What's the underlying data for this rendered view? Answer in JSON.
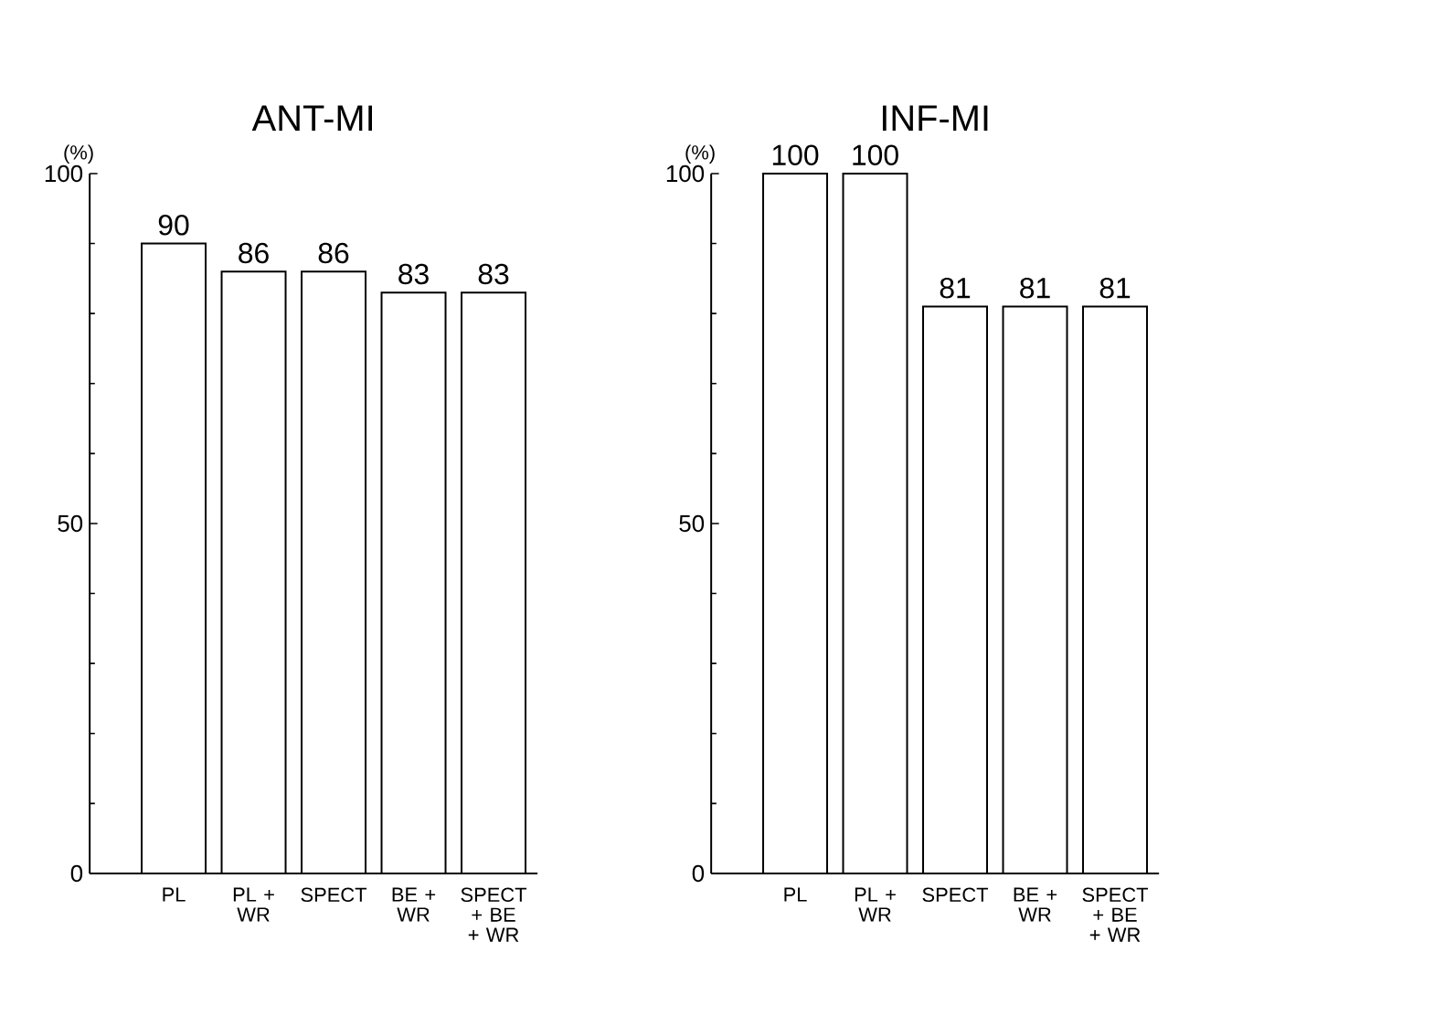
{
  "chart_data": [
    {
      "type": "bar",
      "title": "ANT-MI",
      "ylabel": "(%)",
      "categories": [
        "PL",
        "PL + WR",
        "SPECT",
        "BE + WR",
        "SPECT + BE + WR"
      ],
      "values": [
        90,
        86,
        86,
        83,
        83
      ],
      "color": "#ffffff",
      "ylim": [
        0,
        100
      ],
      "yticks": [
        0,
        50,
        100
      ],
      "data_labels": true
    },
    {
      "type": "bar",
      "title": "INF-MI",
      "ylabel": "(%)",
      "categories": [
        "PL",
        "PL + WR",
        "SPECT",
        "BE + WR",
        "SPECT + BE + WR"
      ],
      "values": [
        100,
        100,
        81,
        81,
        81
      ],
      "color": "#ffffff",
      "ylim": [
        0,
        100
      ],
      "yticks": [
        0,
        50,
        100
      ],
      "data_labels": true
    }
  ]
}
